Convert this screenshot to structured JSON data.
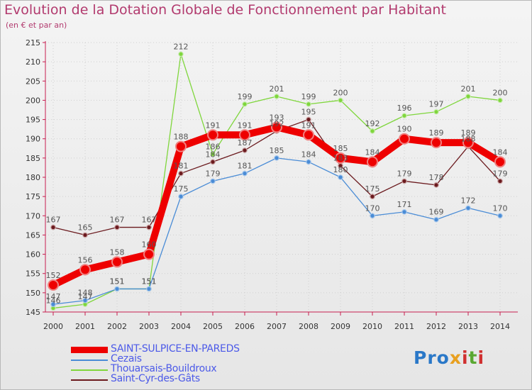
{
  "title": "Evolution de la Dotation Globale de Fonctionnement par Habitant",
  "subtitle": "(en € et par an)",
  "logo": {
    "p": "Pro",
    "x": "x",
    "i1": "i",
    "t": "t",
    "i2": "i"
  },
  "chart_data": {
    "type": "line",
    "title": "Evolution de la Dotation Globale de Fonctionnement par Habitant",
    "subtitle": "(en € et par an)",
    "xlabel": "",
    "ylabel": "",
    "x": [
      "2000",
      "2001",
      "2002",
      "2003",
      "2004",
      "2005",
      "2006",
      "2007",
      "2008",
      "2009",
      "2010",
      "2011",
      "2012",
      "2013",
      "2014"
    ],
    "ylim": [
      145,
      215
    ],
    "yticks": [
      145,
      150,
      155,
      160,
      165,
      170,
      175,
      180,
      185,
      190,
      195,
      200,
      205,
      210,
      215
    ],
    "legend_position": "bottom-left",
    "series": [
      {
        "name": "Saint-Cyr-des-Gâts",
        "color": "#6b1a1e",
        "values": [
          167,
          165,
          167,
          167,
          181,
          184,
          187,
          192,
          195,
          183,
          175,
          179,
          178,
          188,
          179
        ],
        "labels": [
          "167",
          "165",
          "167",
          "167",
          "181",
          "184",
          "187",
          "192",
          "195",
          "183",
          "175",
          "179",
          "178",
          "188",
          "179"
        ]
      },
      {
        "name": "Thouarsais-Bouildroux",
        "color": "#7fd63c",
        "values": [
          146,
          147,
          151,
          151,
          212,
          186,
          199,
          201,
          199,
          200,
          192,
          196,
          197,
          201,
          200
        ],
        "labels": [
          "146",
          "147",
          "151",
          "151",
          "212",
          "186",
          "199",
          "201",
          "199",
          "200",
          "192",
          "196",
          "197",
          "201",
          "200"
        ]
      },
      {
        "name": "Cezais",
        "color": "#4a8cd6",
        "values": [
          147,
          148,
          151,
          151,
          175,
          179,
          181,
          185,
          184,
          180,
          170,
          171,
          169,
          172,
          170
        ],
        "labels": [
          "147",
          "148",
          "151",
          "151",
          "175",
          "179",
          "181",
          "185",
          "184",
          "180",
          "170",
          "171",
          "169",
          "172",
          "170"
        ]
      },
      {
        "name": "SAINT-SULPICE-EN-PAREDS",
        "color": "#ee0000",
        "values": [
          152,
          156,
          158,
          160,
          188,
          191,
          191,
          193,
          191,
          185,
          184,
          190,
          189,
          189,
          184
        ],
        "labels": [
          "152",
          "156",
          "158",
          "160",
          "188",
          "191",
          "191",
          "193",
          "191",
          "185",
          "184",
          "190",
          "189",
          "189",
          "184"
        ]
      }
    ],
    "legend": [
      "SAINT-SULPICE-EN-PAREDS",
      "Cezais",
      "Thouarsais-Bouildroux",
      "Saint-Cyr-des-Gâts"
    ]
  }
}
